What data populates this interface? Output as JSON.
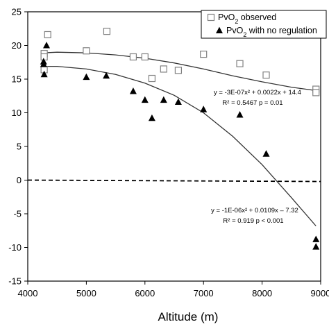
{
  "chart_data": {
    "type": "scatter",
    "xlabel": "Altitude (m)",
    "ylabel": "",
    "xlim": [
      4000,
      9000
    ],
    "ylim": [
      -15,
      25
    ],
    "x_ticks": [
      4000,
      5000,
      6000,
      7000,
      8000,
      9000
    ],
    "y_ticks": [
      -15,
      -10,
      -5,
      0,
      5,
      10,
      15,
      20,
      25
    ],
    "grid": false,
    "legend_position": "top-right",
    "series": [
      {
        "name": "PvO2 observed",
        "legend_base": "PvO",
        "legend_sub": "2",
        "legend_suffix": " observed",
        "marker": "open-square",
        "color": "#808080",
        "points": [
          [
            4280,
            18.8
          ],
          [
            4280,
            18.3
          ],
          [
            4280,
            16.4
          ],
          [
            4340,
            21.6
          ],
          [
            5000,
            19.2
          ],
          [
            5350,
            22.1
          ],
          [
            5800,
            18.3
          ],
          [
            6000,
            18.3
          ],
          [
            6120,
            15.1
          ],
          [
            6320,
            16.5
          ],
          [
            6570,
            16.3
          ],
          [
            7000,
            18.7
          ],
          [
            7620,
            17.3
          ],
          [
            8070,
            15.6
          ],
          [
            8920,
            13.5
          ],
          [
            8920,
            13.0
          ]
        ]
      },
      {
        "name": "PvO2 with no regulation",
        "legend_base": "PvO",
        "legend_sub": "2",
        "legend_suffix": " with no regulation",
        "marker": "filled-triangle",
        "color": "#000000",
        "points": [
          [
            4270,
            17.6
          ],
          [
            4270,
            17.2
          ],
          [
            4280,
            15.7
          ],
          [
            4320,
            20.0
          ],
          [
            5000,
            15.3
          ],
          [
            5340,
            15.5
          ],
          [
            5800,
            13.2
          ],
          [
            6000,
            11.9
          ],
          [
            6120,
            9.2
          ],
          [
            6320,
            11.9
          ],
          [
            6570,
            11.6
          ],
          [
            7000,
            10.5
          ],
          [
            7620,
            9.7
          ],
          [
            8070,
            3.9
          ],
          [
            8920,
            -8.8
          ],
          [
            8920,
            -9.9
          ]
        ]
      }
    ],
    "trendlines": [
      {
        "series": "PvO2 observed",
        "color": "#333333",
        "x_range": [
          4270,
          8920
        ],
        "points": [
          [
            4270,
            18.9
          ],
          [
            4500,
            19.0
          ],
          [
            5000,
            18.9
          ],
          [
            5500,
            18.6
          ],
          [
            6000,
            18.1
          ],
          [
            6500,
            17.4
          ],
          [
            7000,
            16.5
          ],
          [
            7500,
            15.5
          ],
          [
            8000,
            14.6
          ],
          [
            8500,
            13.8
          ],
          [
            8920,
            13.3
          ]
        ],
        "equation": "y = -3E-07x² + 0.0022x + 14.4",
        "stats": "R² = 0.5467  p = 0.01"
      },
      {
        "series": "PvO2 with no regulation",
        "color": "#333333",
        "x_range": [
          4270,
          8920
        ],
        "points": [
          [
            4270,
            16.9
          ],
          [
            4500,
            16.9
          ],
          [
            5000,
            16.5
          ],
          [
            5500,
            15.7
          ],
          [
            6000,
            14.4
          ],
          [
            6500,
            12.6
          ],
          [
            7000,
            10.0
          ],
          [
            7500,
            6.5
          ],
          [
            8000,
            2.3
          ],
          [
            8500,
            -2.6
          ],
          [
            8920,
            -6.8
          ]
        ],
        "equation": "y = -1E-06x² + 0.0109x – 7.32",
        "stats": "R² = 0.919  p < 0.001"
      }
    ],
    "reference_line": {
      "y": 0,
      "style": "dashed",
      "color": "#000000"
    }
  }
}
